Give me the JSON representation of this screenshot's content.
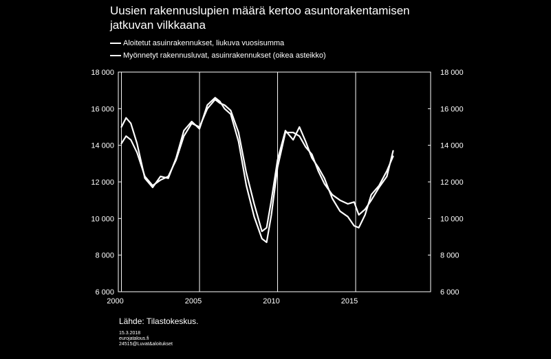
{
  "header": {
    "title_line1": "Uusien rakennuslupien määrä kertoo asuntorakentamisen",
    "title_line2": "jatkuvan vilkkaana"
  },
  "footer": {
    "source": "Lähde: Tilastokeskus.",
    "date": "15.3.2018",
    "site": "eurojatalous.fi",
    "code": "24515@Luvat&aloitukset"
  },
  "chart_data": {
    "type": "line",
    "xlim": [
      1999.8,
      2019.8
    ],
    "ylim_left": [
      6000,
      18000
    ],
    "ylim_right": [
      6000,
      18000
    ],
    "grid": "vertical-only",
    "legend_position": "top-left",
    "x_ticks": [
      2000,
      2005,
      2010,
      2015
    ],
    "x_tick_labels": [
      "2000",
      "2005",
      "2010",
      "2015"
    ],
    "y_ticks": [
      6000,
      8000,
      10000,
      12000,
      14000,
      16000,
      18000
    ],
    "y_tick_labels": [
      "6 000",
      "8 000",
      "10 000",
      "12 000",
      "14 000",
      "16 000",
      "18 000"
    ],
    "series": [
      {
        "name": "Aloitetut asuinrakennukset, liukuva vuosisumma",
        "axis": "left",
        "color": "#ffffff",
        "x": [
          2000.0,
          2000.3,
          2000.6,
          2001.0,
          2001.5,
          2002.0,
          2002.5,
          2003.0,
          2003.5,
          2004.0,
          2004.5,
          2005.0,
          2005.5,
          2006.0,
          2006.3,
          2006.6,
          2007.0,
          2007.5,
          2008.0,
          2008.5,
          2009.0,
          2009.3,
          2009.6,
          2010.0,
          2010.5,
          2011.0,
          2011.4,
          2011.8,
          2012.2,
          2012.6,
          2013.0,
          2013.5,
          2014.0,
          2014.5,
          2014.9,
          2015.2,
          2015.6,
          2016.0,
          2016.5,
          2017.0,
          2017.4
        ],
        "y": [
          14100,
          14500,
          14300,
          13600,
          12300,
          11800,
          12100,
          12300,
          13200,
          14500,
          15200,
          15000,
          16000,
          16500,
          16300,
          16200,
          15900,
          14700,
          12500,
          10800,
          9300,
          9500,
          11000,
          13200,
          14800,
          14300,
          15000,
          14200,
          13300,
          12800,
          12200,
          11100,
          10400,
          10100,
          9600,
          9500,
          10200,
          11300,
          11800,
          12600,
          13400
        ]
      },
      {
        "name": "Myönnetyt rakennusluvat, asuinrakennukset (oikea asteikko)",
        "axis": "right",
        "color": "#ffffff",
        "x": [
          2000.0,
          2000.3,
          2000.6,
          2001.0,
          2001.5,
          2002.0,
          2002.5,
          2003.0,
          2003.5,
          2004.0,
          2004.5,
          2005.0,
          2005.5,
          2006.0,
          2006.3,
          2006.6,
          2007.0,
          2007.5,
          2008.0,
          2008.5,
          2009.0,
          2009.3,
          2009.6,
          2010.0,
          2010.5,
          2011.0,
          2011.4,
          2011.8,
          2012.2,
          2012.6,
          2013.0,
          2013.5,
          2014.0,
          2014.5,
          2014.9,
          2015.2,
          2015.6,
          2016.0,
          2016.5,
          2017.0,
          2017.4
        ],
        "y": [
          15000,
          15500,
          15200,
          14100,
          12200,
          11700,
          12300,
          12200,
          13300,
          14800,
          15300,
          14900,
          16200,
          16600,
          16400,
          16000,
          15700,
          14200,
          11800,
          10100,
          8900,
          8700,
          10200,
          12800,
          14700,
          14700,
          14500,
          13900,
          13500,
          12600,
          11900,
          11300,
          11000,
          10800,
          10900,
          10200,
          10500,
          11000,
          11700,
          12300,
          13700
        ]
      }
    ]
  }
}
